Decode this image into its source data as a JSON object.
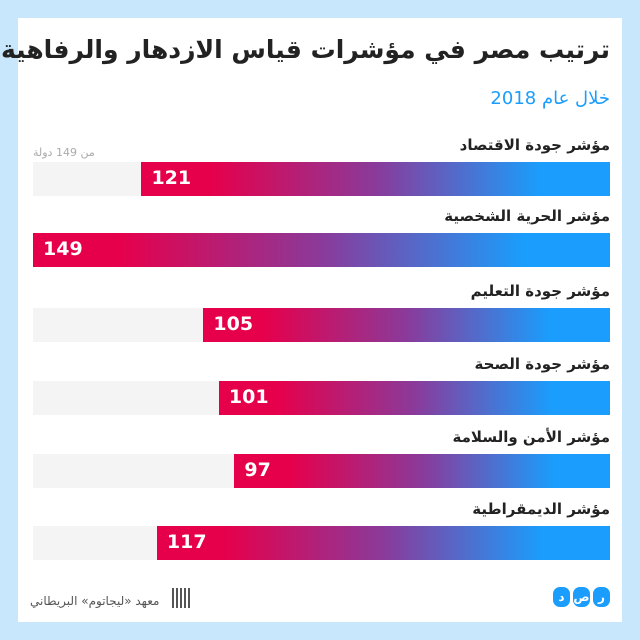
{
  "title": "ترتيب مصر في مؤشرات قياس الازدهار والرفاهية",
  "subtitle": "خلال عام 2018",
  "note": "من 149 دولة",
  "footer": "معهد «ليجاتوم» البريطاني",
  "logo_letters": [
    "ر",
    "ص",
    "د"
  ],
  "colors": {
    "start": "#e6004c",
    "end": "#1a9dfc"
  },
  "chart_data": {
    "type": "bar",
    "title": "ترتيب مصر في مؤشرات قياس الازدهار والرفاهية",
    "subtitle": "خلال عام 2018",
    "max": 149,
    "categories": [
      "مؤشر جودة الاقتصاد",
      "مؤشر الحرية الشخصية",
      "مؤشر جودة التعليم",
      "مؤشر جودة الصحة",
      "مؤشر الأمن والسلامة",
      "مؤشر  الديمقراطية"
    ],
    "values": [
      121,
      149,
      105,
      101,
      97,
      117
    ]
  }
}
